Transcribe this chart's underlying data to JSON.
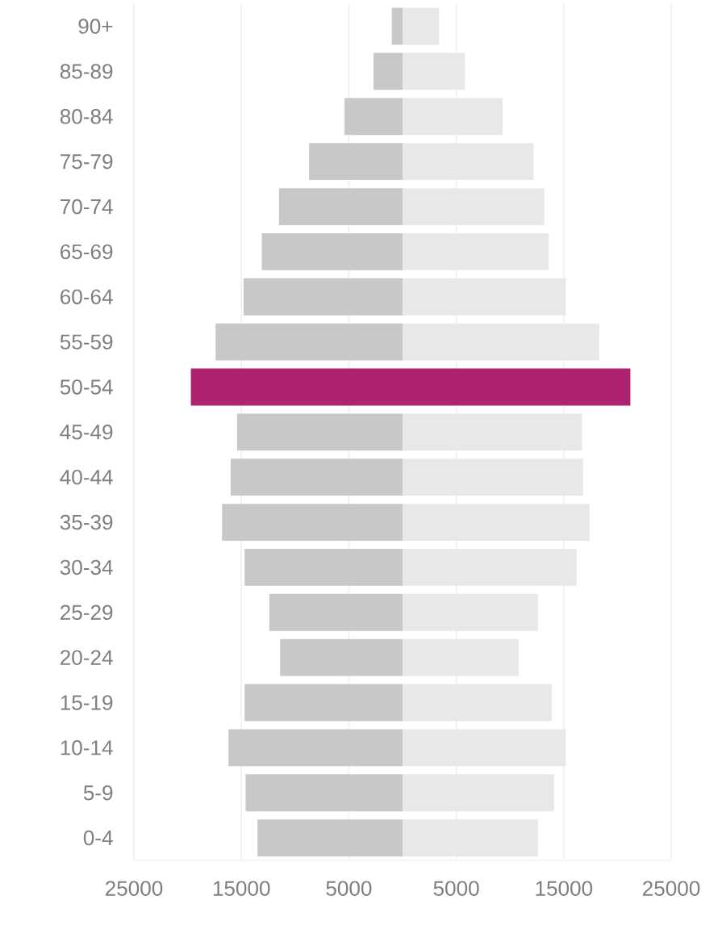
{
  "chart_data": {
    "type": "bar",
    "orientation": "horizontal",
    "categories": [
      "90+",
      "85-89",
      "80-84",
      "75-79",
      "70-74",
      "65-69",
      "60-64",
      "55-59",
      "50-54",
      "45-49",
      "40-44",
      "35-39",
      "30-34",
      "25-29",
      "20-24",
      "15-19",
      "10-14",
      "5-9",
      "0-4"
    ],
    "series": [
      {
        "values": [
          -1000,
          -2700,
          -5400,
          -8700,
          -11500,
          -13100,
          -14800,
          -17400,
          -19700,
          -15400,
          -16000,
          -16800,
          -14700,
          -12400,
          -11400,
          -14700,
          -16200,
          -14600,
          -13500
        ],
        "colors": [
          "#c8c8c8",
          "#c8c8c8",
          "#c8c8c8",
          "#c8c8c8",
          "#c8c8c8",
          "#c8c8c8",
          "#c8c8c8",
          "#c8c8c8",
          "#ae2370",
          "#c8c8c8",
          "#c8c8c8",
          "#c8c8c8",
          "#c8c8c8",
          "#c8c8c8",
          "#c8c8c8",
          "#c8c8c8",
          "#c8c8c8",
          "#c8c8c8",
          "#c8c8c8"
        ]
      },
      {
        "values": [
          3400,
          5800,
          9300,
          12200,
          13200,
          13600,
          15200,
          18300,
          21200,
          16700,
          16800,
          17400,
          16200,
          12600,
          10800,
          13900,
          15200,
          14100,
          12600
        ],
        "colors": [
          "#e8e8e8",
          "#e8e8e8",
          "#e8e8e8",
          "#e8e8e8",
          "#e8e8e8",
          "#e8e8e8",
          "#e8e8e8",
          "#e8e8e8",
          "#ae2370",
          "#e8e8e8",
          "#e8e8e8",
          "#e8e8e8",
          "#e8e8e8",
          "#e8e8e8",
          "#e8e8e8",
          "#e8e8e8",
          "#e8e8e8",
          "#e8e8e8",
          "#e8e8e8"
        ]
      }
    ],
    "xlim": [
      -25000,
      25000
    ],
    "xticks": [
      {
        "value": -25000,
        "label": "25000"
      },
      {
        "value": -15000,
        "label": "15000"
      },
      {
        "value": -5000,
        "label": "5000"
      },
      {
        "value": 5000,
        "label": "5000"
      },
      {
        "value": 15000,
        "label": "15000"
      },
      {
        "value": 25000,
        "label": "25000"
      }
    ],
    "grid": "x",
    "stacked": true
  }
}
